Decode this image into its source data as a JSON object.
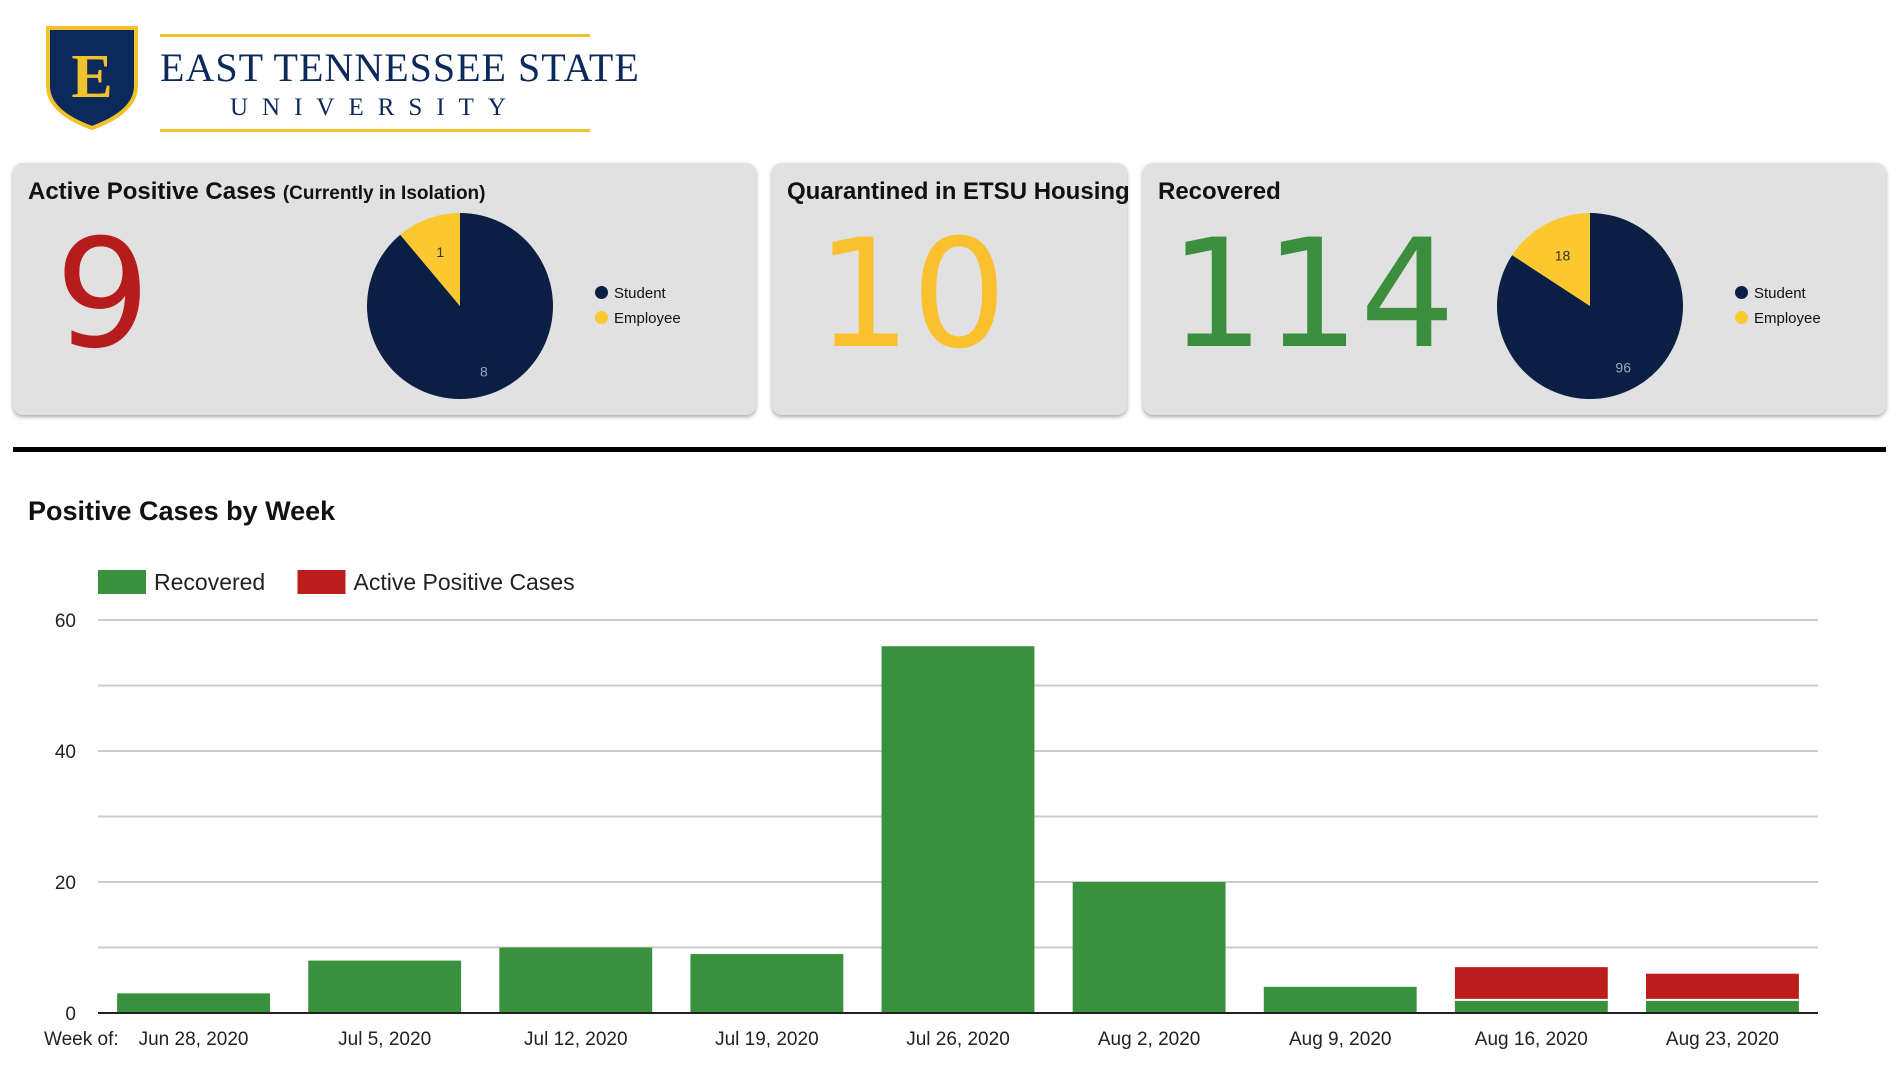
{
  "logo": {
    "emblem": "E",
    "name": "EAST TENNESSEE STATE",
    "subname": "UNIVERSITY",
    "colors": {
      "navy": "#0b2a5b",
      "gold": "#f2c12e"
    }
  },
  "cards": {
    "active": {
      "title": "Active Positive Cases",
      "subtitle": "(Currently in Isolation)",
      "value": "9",
      "color": "#b71c1c",
      "pie": [
        {
          "label": "Student",
          "value": 8,
          "color": "#0b1f44"
        },
        {
          "label": "Employee",
          "value": 1,
          "color": "#fbc82f"
        }
      ]
    },
    "quarantined": {
      "title": "Quarantined in ETSU Housing",
      "value": "10",
      "color": "#fbc02d"
    },
    "recovered": {
      "title": "Recovered",
      "value": "114",
      "color": "#3b8e3b",
      "pie": [
        {
          "label": "Student",
          "value": 96,
          "color": "#0b1f44"
        },
        {
          "label": "Employee",
          "value": 18,
          "color": "#fbc82f"
        }
      ]
    }
  },
  "chart_data": {
    "type": "bar",
    "stacked": true,
    "title": "Positive Cases by Week",
    "x_prefix": "Week of:",
    "categories": [
      "Jun 28, 2020",
      "Jul 5, 2020",
      "Jul 12, 2020",
      "Jul 19, 2020",
      "Jul 26, 2020",
      "Aug 2, 2020",
      "Aug 9, 2020",
      "Aug 16, 2020",
      "Aug 23, 2020"
    ],
    "series": [
      {
        "name": "Recovered",
        "color": "#3a913d",
        "values": [
          3,
          8,
          10,
          9,
          56,
          20,
          4,
          2,
          2
        ]
      },
      {
        "name": "Active Positive Cases",
        "color": "#bb1d1d",
        "values": [
          0,
          0,
          0,
          0,
          0,
          0,
          0,
          5,
          4
        ]
      }
    ],
    "ylim": [
      0,
      60
    ],
    "yticks": [
      0,
      20,
      40,
      60
    ],
    "grid": true,
    "legend": "top-left"
  }
}
